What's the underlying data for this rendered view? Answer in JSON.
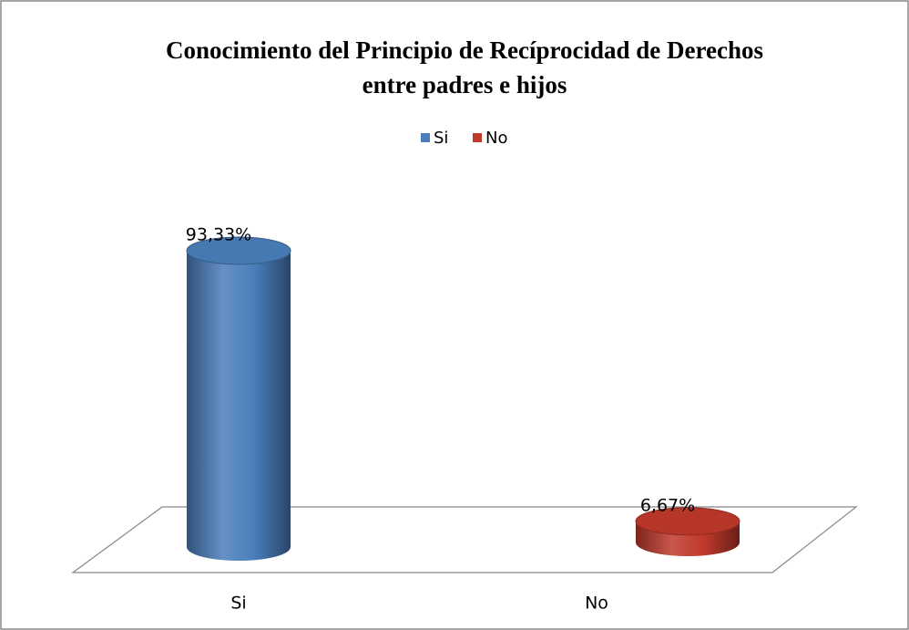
{
  "chart_data": {
    "type": "bar3d",
    "title": [
      "Conocimiento del Principio de Recíprocidad de Derechos",
      "entre padres e hijos"
    ],
    "categories": [
      "Si",
      "No"
    ],
    "values": [
      93.33,
      6.67
    ],
    "value_labels": [
      "93,33%",
      "6,67%"
    ],
    "colors": [
      "#4a7ebb",
      "#c0392b"
    ],
    "legend": "top"
  }
}
